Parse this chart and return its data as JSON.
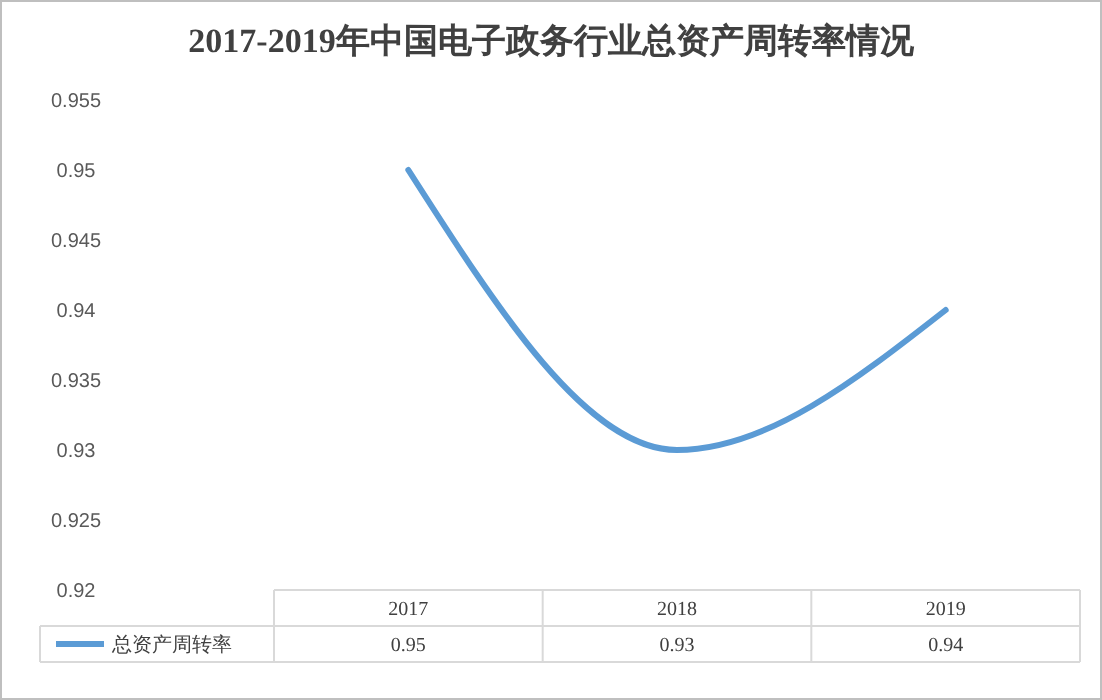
{
  "chart_data": {
    "type": "line",
    "title": "2017-2019年中国电子政务行业总资产周转率情况",
    "categories": [
      "2017",
      "2018",
      "2019"
    ],
    "series": [
      {
        "name": "总资产周转率",
        "color": "#5b9bd5",
        "values": [
          0.95,
          0.93,
          0.94
        ]
      }
    ],
    "ylim": [
      0.92,
      0.955
    ],
    "yticks": [
      0.92,
      0.925,
      0.93,
      0.935,
      0.94,
      0.945,
      0.95,
      0.955
    ],
    "data_labels": true,
    "grid": false,
    "legend": "bottom"
  }
}
